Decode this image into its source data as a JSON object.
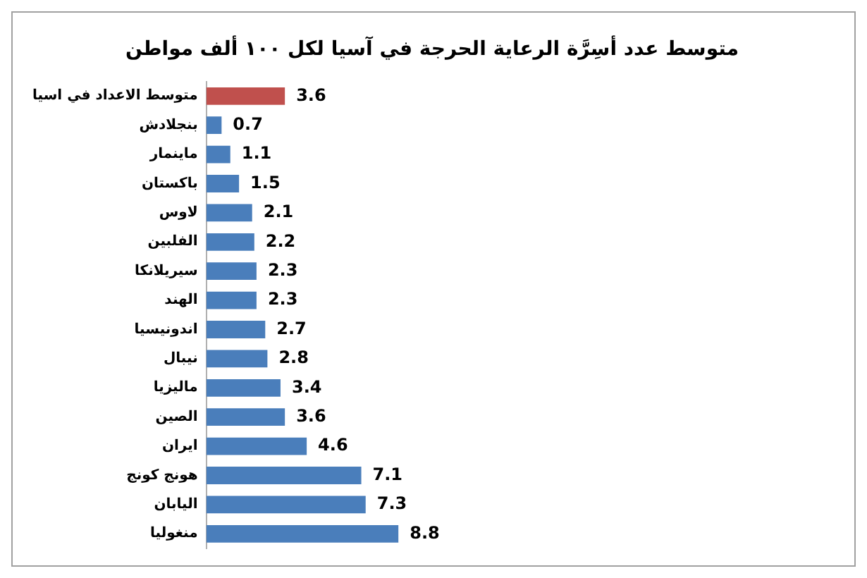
{
  "chart_data": {
    "type": "bar",
    "orientation": "horizontal",
    "title": "متوسط عدد أسِرَّة الرعاية الحرجة في آسيا لكل ١٠٠ ألف مواطن",
    "categories": [
      "متوسط الاعداد في اسيا",
      "بنجلادش",
      "ماينمار",
      "باكستان",
      "لاوس",
      "الفلبين",
      "سيريلانكا",
      "الهند",
      "اندونيسيا",
      "نيبال",
      "ماليزيا",
      "الصين",
      "ايران",
      "هونج كونج",
      "اليابان",
      "منغوليا"
    ],
    "values": [
      3.6,
      0.7,
      1.1,
      1.5,
      2.1,
      2.2,
      2.3,
      2.3,
      2.7,
      2.8,
      3.4,
      3.6,
      4.6,
      7.1,
      7.3,
      8.8
    ],
    "colors": [
      "#c0504d",
      "#4a7ebb",
      "#4a7ebb",
      "#4a7ebb",
      "#4a7ebb",
      "#4a7ebb",
      "#4a7ebb",
      "#4a7ebb",
      "#4a7ebb",
      "#4a7ebb",
      "#4a7ebb",
      "#4a7ebb",
      "#4a7ebb",
      "#4a7ebb",
      "#4a7ebb",
      "#4a7ebb"
    ],
    "data_labels": true,
    "legend": false
  }
}
